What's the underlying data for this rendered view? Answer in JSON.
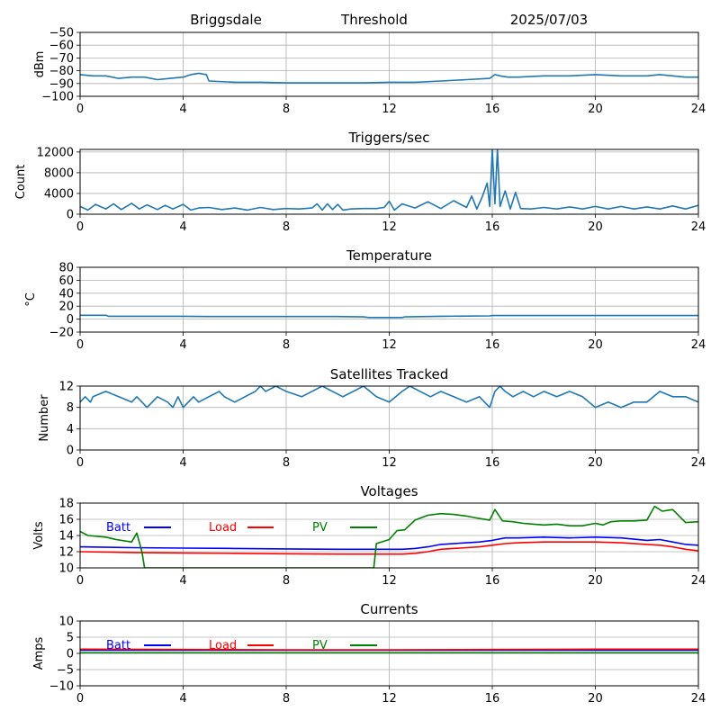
{
  "header": {
    "station": "Briggsdale",
    "mode": "Threshold",
    "date": "2025/07/03"
  },
  "colors": {
    "trace": "#1f77b4",
    "grid": "#b0b0b0",
    "batt": "#0000ff",
    "load": "#ff0000",
    "pv": "#008000"
  },
  "chart_data": [
    {
      "id": "signal",
      "type": "line",
      "title": "",
      "xlabel": "",
      "ylabel": "dBm",
      "xlim": [
        0,
        24
      ],
      "ylim": [
        -100,
        -50
      ],
      "xticks": [
        0,
        4,
        8,
        12,
        16,
        20,
        24
      ],
      "yticks": [
        -100,
        -90,
        -80,
        -70,
        -60,
        -50
      ],
      "grid": true,
      "series": [
        {
          "color": "trace",
          "x": [
            0,
            0.5,
            1,
            1.5,
            2,
            2.5,
            3,
            3.5,
            4,
            4.3,
            4.6,
            4.9,
            5.0,
            6,
            7,
            8,
            9,
            10,
            11,
            12,
            13,
            14,
            15,
            15.9,
            16.1,
            16.3,
            16.6,
            17,
            18,
            19,
            20,
            21,
            22,
            22.5,
            23,
            23.5,
            24
          ],
          "y": [
            -83,
            -84,
            -84,
            -86,
            -85,
            -85,
            -87,
            -86,
            -85,
            -83,
            -82,
            -83,
            -88,
            -89,
            -89,
            -89.5,
            -89.5,
            -89.5,
            -89.5,
            -89,
            -89,
            -88,
            -87,
            -86,
            -83,
            -84,
            -85,
            -85,
            -84,
            -84,
            -83,
            -84,
            -84,
            -83,
            -84,
            -85,
            -85
          ]
        }
      ]
    },
    {
      "id": "triggers",
      "type": "line",
      "title": "Triggers/sec",
      "xlabel": "",
      "ylabel": "Count",
      "xlim": [
        0,
        24
      ],
      "ylim": [
        0,
        12500
      ],
      "xticks": [
        0,
        4,
        8,
        12,
        16,
        20,
        24
      ],
      "yticks": [
        0,
        4000,
        8000,
        12000
      ],
      "grid": true,
      "series": [
        {
          "color": "trace",
          "x": [
            0,
            0.3,
            0.6,
            1,
            1.3,
            1.6,
            2,
            2.3,
            2.6,
            3,
            3.3,
            3.6,
            4,
            4.3,
            4.6,
            5,
            5.5,
            6,
            6.5,
            7,
            7.5,
            8,
            8.5,
            9,
            9.2,
            9.4,
            9.6,
            9.8,
            10,
            10.2,
            10.5,
            11,
            11.5,
            11.8,
            12,
            12.2,
            12.5,
            13,
            13.5,
            14,
            14.5,
            15,
            15.2,
            15.4,
            15.6,
            15.8,
            15.9,
            16.0,
            16.1,
            16.2,
            16.3,
            16.5,
            16.7,
            16.9,
            17.1,
            17.5,
            18,
            18.5,
            19,
            19.5,
            20,
            20.5,
            21,
            21.5,
            22,
            22.5,
            23,
            23.5,
            24
          ],
          "y": [
            1500,
            800,
            1900,
            1000,
            2000,
            900,
            2100,
            1000,
            1800,
            900,
            1700,
            1000,
            1900,
            800,
            1200,
            1300,
            900,
            1200,
            800,
            1300,
            900,
            1100,
            1000,
            1200,
            2000,
            800,
            2000,
            900,
            1900,
            800,
            1000,
            1100,
            1100,
            1300,
            2500,
            800,
            2000,
            1200,
            2400,
            1100,
            2600,
            1300,
            3500,
            1000,
            3200,
            6000,
            1500,
            12500,
            2000,
            12500,
            1500,
            4500,
            1000,
            4200,
            1100,
            1000,
            1300,
            1000,
            1400,
            1000,
            1500,
            1000,
            1500,
            1000,
            1400,
            1000,
            1600,
            1000,
            1700
          ]
        }
      ]
    },
    {
      "id": "temperature",
      "type": "line",
      "title": "Temperature",
      "xlabel": "",
      "ylabel": "°C",
      "xlim": [
        0,
        24
      ],
      "ylim": [
        -20,
        80
      ],
      "xticks": [
        0,
        4,
        8,
        12,
        16,
        20,
        24
      ],
      "yticks": [
        -20,
        0,
        20,
        40,
        60,
        80
      ],
      "grid": true,
      "series": [
        {
          "color": "trace",
          "x": [
            0,
            1,
            1.1,
            4,
            5,
            8,
            10,
            11,
            11.2,
            12.5,
            12.6,
            14,
            15.9,
            16,
            24
          ],
          "y": [
            6,
            6,
            4.5,
            4.5,
            4,
            4,
            4,
            3.5,
            2.5,
            2.5,
            3.5,
            4.5,
            5,
            5.5,
            5.5
          ]
        }
      ]
    },
    {
      "id": "satellites",
      "type": "line",
      "title": "Satellites Tracked",
      "xlabel": "",
      "ylabel": "Number",
      "xlim": [
        0,
        24
      ],
      "ylim": [
        0,
        12
      ],
      "xticks": [
        0,
        4,
        8,
        12,
        16,
        20,
        24
      ],
      "yticks": [
        0,
        4,
        8,
        12
      ],
      "grid": true,
      "series": [
        {
          "color": "trace",
          "x": [
            0,
            0.2,
            0.4,
            0.5,
            1.0,
            1.5,
            2.0,
            2.2,
            2.6,
            3.0,
            3.4,
            3.6,
            3.8,
            4.0,
            4.2,
            4.4,
            4.6,
            5.0,
            5.4,
            5.6,
            6.0,
            6.4,
            6.8,
            7.0,
            7.2,
            7.6,
            8.0,
            8.6,
            9.0,
            9.4,
            9.8,
            10.2,
            10.6,
            11.0,
            11.5,
            12.0,
            12.5,
            12.8,
            13.2,
            13.6,
            14.0,
            14.5,
            15.0,
            15.5,
            15.9,
            16.1,
            16.3,
            16.5,
            16.8,
            17.2,
            17.6,
            18.0,
            18.5,
            19.0,
            19.5,
            20.0,
            20.5,
            21.0,
            21.5,
            22.0,
            22.5,
            23.0,
            23.5,
            24
          ],
          "y": [
            9,
            10,
            9,
            10,
            11,
            10,
            9,
            10,
            8,
            10,
            9,
            8,
            10,
            8,
            9,
            10,
            9,
            10,
            11,
            10,
            9,
            10,
            11,
            12,
            11,
            12,
            11,
            10,
            11,
            12,
            11,
            10,
            11,
            12,
            10,
            9,
            11,
            12,
            11,
            10,
            11,
            10,
            9,
            10,
            8,
            11,
            12,
            11,
            10,
            11,
            10,
            11,
            10,
            11,
            10,
            8,
            9,
            8,
            9,
            9,
            11,
            10,
            10,
            9
          ]
        }
      ]
    },
    {
      "id": "voltages",
      "type": "line",
      "title": "Voltages",
      "xlabel": "",
      "ylabel": "Volts",
      "xlim": [
        0,
        24
      ],
      "ylim": [
        10,
        18
      ],
      "xticks": [
        0,
        4,
        8,
        12,
        16,
        20,
        24
      ],
      "yticks": [
        10,
        12,
        14,
        16,
        18
      ],
      "grid": true,
      "legend": [
        "Batt",
        "Load",
        "PV"
      ],
      "series": [
        {
          "name": "Batt",
          "color": "batt",
          "x": [
            0,
            2,
            4,
            6,
            8,
            10,
            11.5,
            12.5,
            13,
            13.5,
            14,
            15,
            15.5,
            16,
            16.5,
            17,
            18,
            19,
            20,
            21,
            22,
            22.5,
            23,
            23.5,
            24
          ],
          "y": [
            12.6,
            12.5,
            12.45,
            12.4,
            12.35,
            12.3,
            12.3,
            12.3,
            12.4,
            12.6,
            12.9,
            13.1,
            13.2,
            13.4,
            13.7,
            13.7,
            13.8,
            13.7,
            13.8,
            13.7,
            13.4,
            13.5,
            13.2,
            12.9,
            12.8
          ]
        },
        {
          "name": "Load",
          "color": "load",
          "x": [
            0,
            2,
            4,
            6,
            8,
            10,
            11.5,
            12.5,
            13,
            13.5,
            14,
            15,
            15.5,
            16,
            16.5,
            17,
            18,
            19,
            20,
            21,
            22,
            22.5,
            23,
            23.5,
            24
          ],
          "y": [
            12.0,
            11.9,
            11.85,
            11.8,
            11.75,
            11.7,
            11.7,
            11.7,
            11.8,
            12.0,
            12.3,
            12.5,
            12.6,
            12.8,
            13.0,
            13.1,
            13.2,
            13.2,
            13.2,
            13.1,
            12.9,
            12.8,
            12.6,
            12.3,
            12.1
          ]
        },
        {
          "name": "PV",
          "color": "pv",
          "x": [
            0,
            0.3,
            1.0,
            1.4,
            1.8,
            2.0,
            2.2,
            2.4,
            2.5,
            11.4,
            11.5,
            12.0,
            12.3,
            12.6,
            13.0,
            13.5,
            14.0,
            14.5,
            15.0,
            15.5,
            15.9,
            16.1,
            16.4,
            16.8,
            17.2,
            17.6,
            18.0,
            18.5,
            19.0,
            19.5,
            20.0,
            20.3,
            20.6,
            21.0,
            21.5,
            22.0,
            22.3,
            22.6,
            23.0,
            23.5,
            24
          ],
          "y": [
            14.5,
            14.0,
            13.8,
            13.5,
            13.3,
            13.2,
            14.3,
            12.0,
            10.0,
            10.0,
            13.0,
            13.5,
            14.6,
            14.7,
            15.9,
            16.5,
            16.7,
            16.6,
            16.4,
            16.1,
            15.9,
            17.2,
            15.8,
            15.7,
            15.5,
            15.4,
            15.3,
            15.4,
            15.2,
            15.2,
            15.5,
            15.3,
            15.7,
            15.8,
            15.8,
            15.9,
            17.6,
            17.0,
            17.2,
            15.6,
            15.7
          ]
        }
      ]
    },
    {
      "id": "currents",
      "type": "line",
      "title": "Currents",
      "xlabel": "",
      "ylabel": "Amps",
      "xlim": [
        0,
        24
      ],
      "ylim": [
        -10,
        10
      ],
      "xticks": [
        0,
        4,
        8,
        12,
        16,
        20,
        24
      ],
      "yticks": [
        -10,
        -5,
        0,
        5,
        10
      ],
      "grid": true,
      "legend": [
        "Batt",
        "Load",
        "PV"
      ],
      "series": [
        {
          "name": "Batt",
          "color": "batt",
          "x": [
            0,
            24
          ],
          "y": [
            1.0,
            1.0
          ]
        },
        {
          "name": "Load",
          "color": "load",
          "x": [
            0,
            4,
            8,
            12,
            16,
            20,
            24
          ],
          "y": [
            1.3,
            1.2,
            1.1,
            1.1,
            1.2,
            1.3,
            1.3
          ]
        },
        {
          "name": "PV",
          "color": "pv",
          "x": [
            0,
            24
          ],
          "y": [
            0.2,
            0.2
          ]
        }
      ]
    }
  ]
}
